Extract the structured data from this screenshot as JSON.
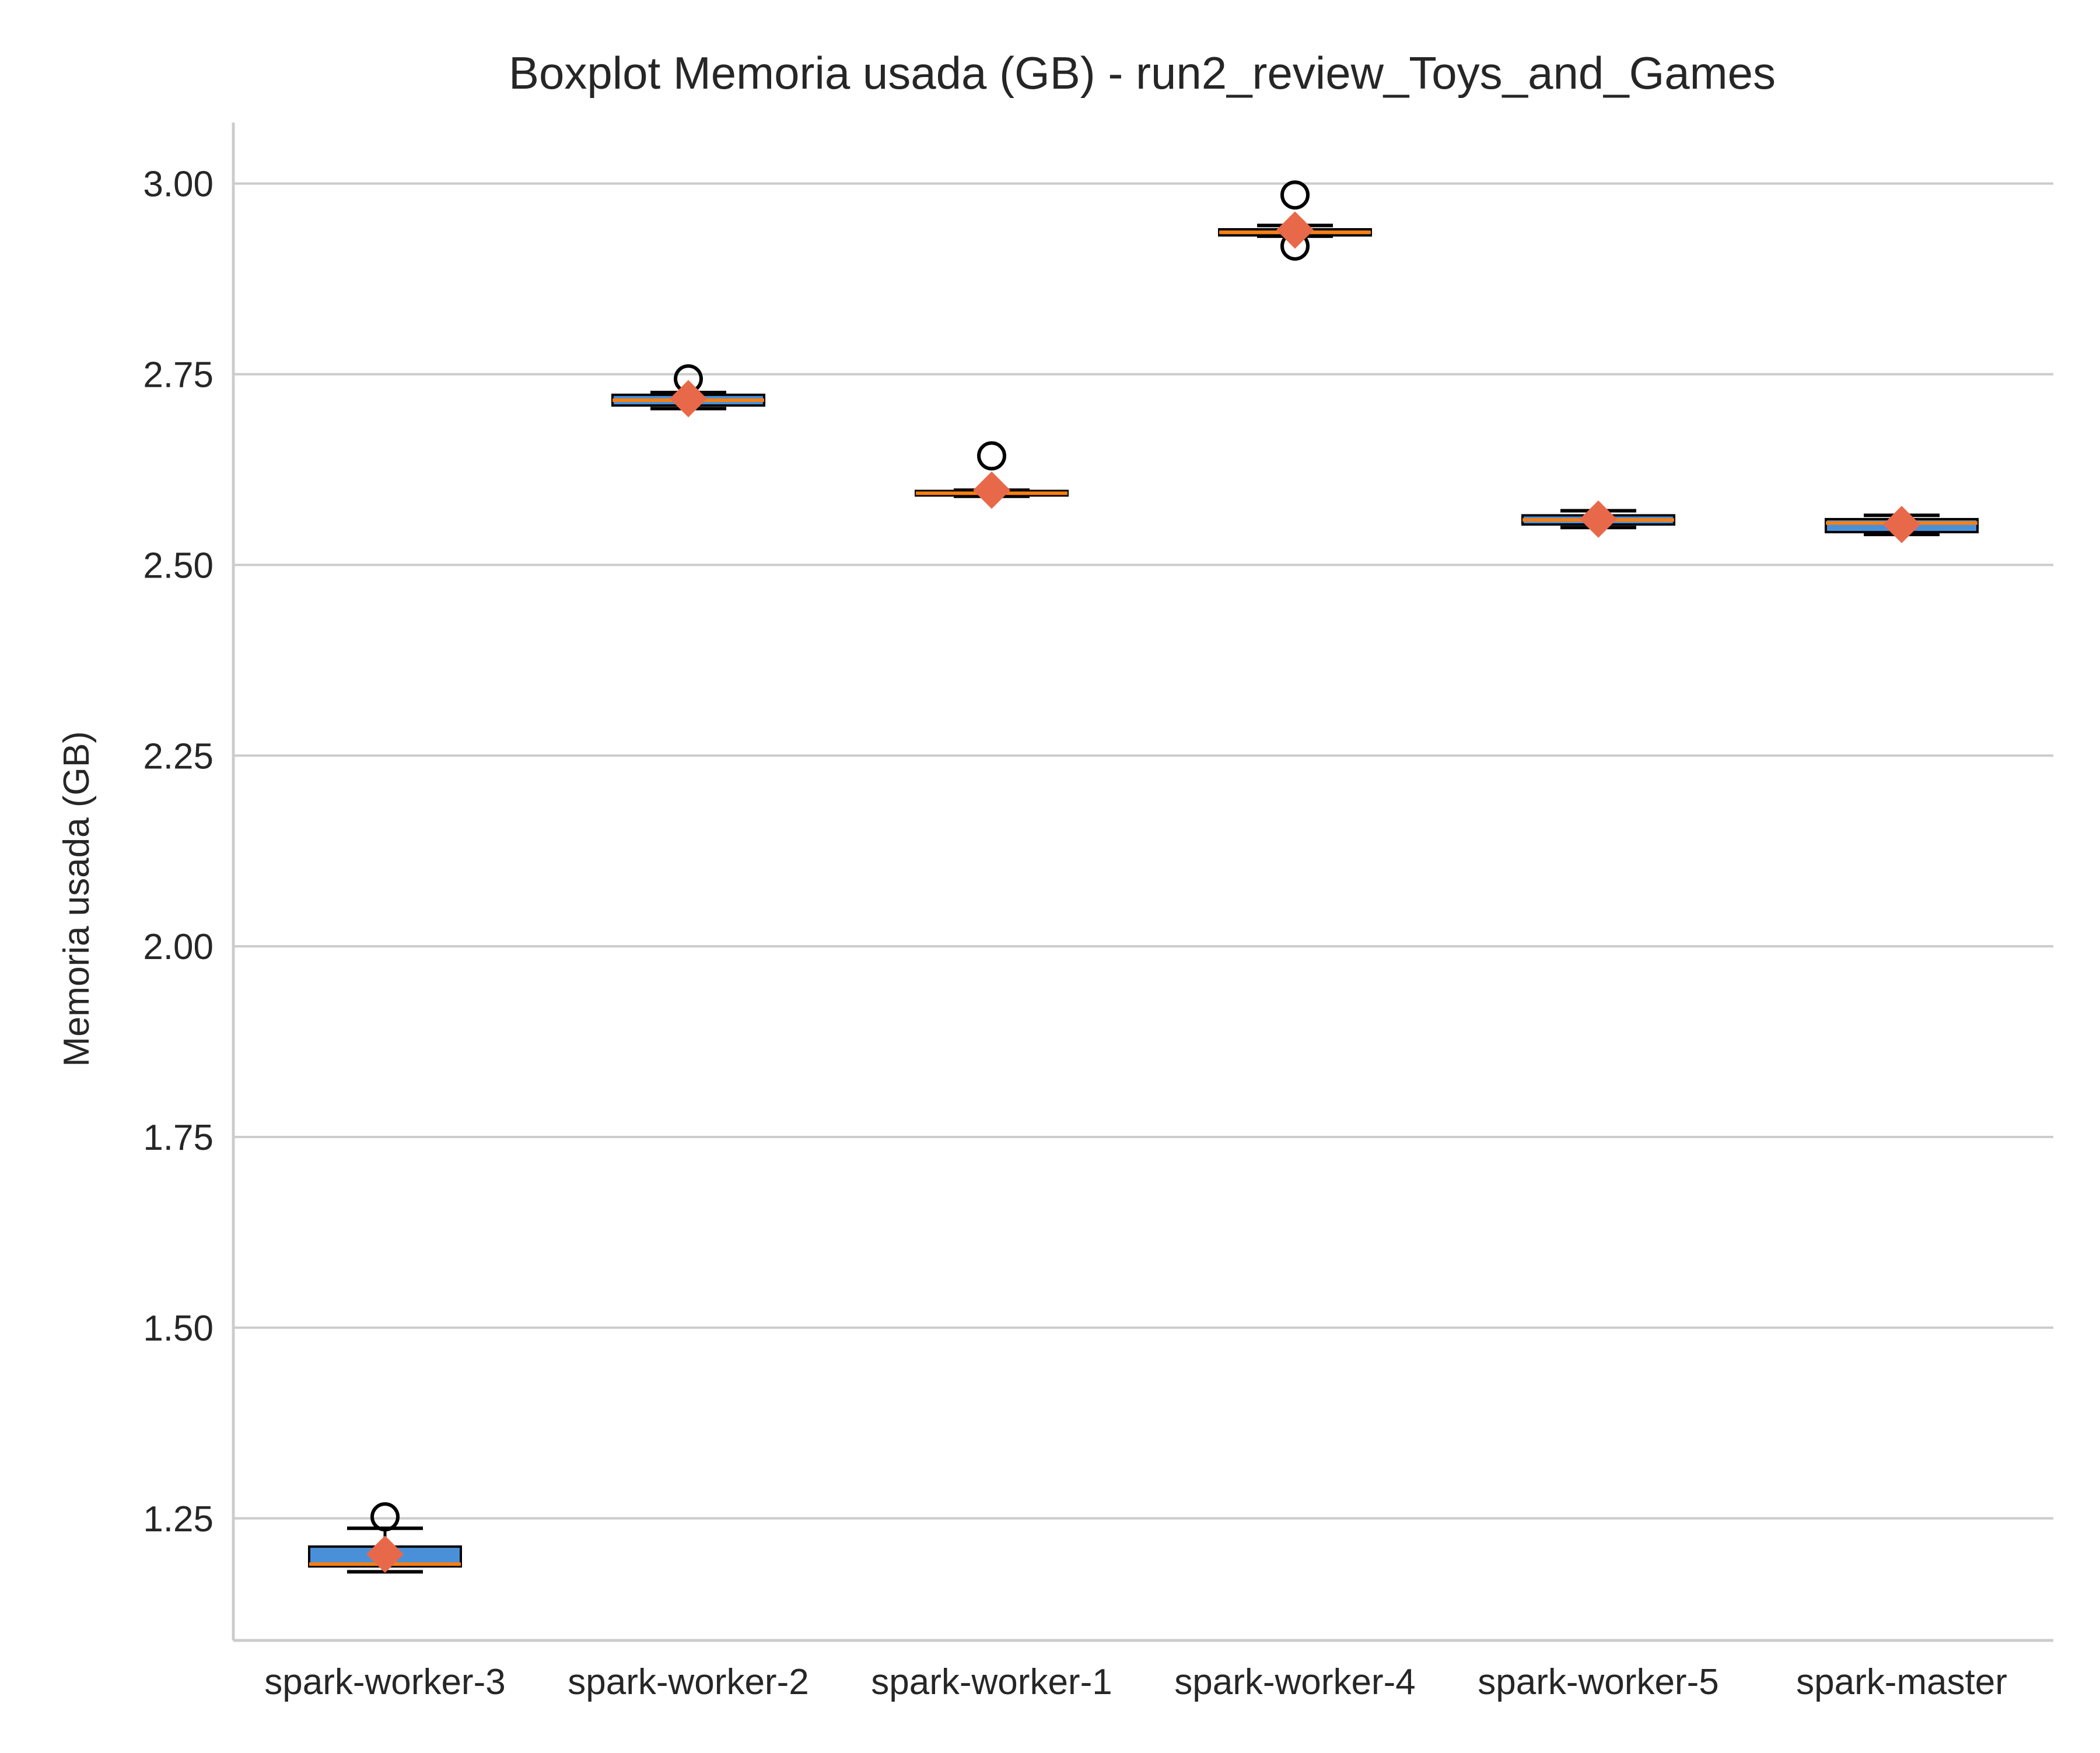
{
  "chart_data": {
    "type": "boxplot",
    "title": "Boxplot Memoria usada (GB) - run2_review_Toys_and_Games",
    "xlabel": "",
    "ylabel": "Memoria usada (GB)",
    "ylim": [
      1.09,
      3.08
    ],
    "yticks": [
      "1.25",
      "1.50",
      "1.75",
      "2.00",
      "2.25",
      "2.50",
      "2.75",
      "3.00"
    ],
    "ytick_values": [
      1.25,
      1.5,
      1.75,
      2.0,
      2.25,
      2.5,
      2.75,
      3.0
    ],
    "grid": "horizontal",
    "categories": [
      "spark-worker-3",
      "spark-worker-2",
      "spark-worker-1",
      "spark-worker-4",
      "spark-worker-5",
      "spark-master"
    ],
    "boxes": [
      {
        "whislo": 1.18,
        "q1": 1.187,
        "med": 1.19,
        "q3": 1.213,
        "whishi": 1.237,
        "mean": 1.203,
        "fliers": [
          1.252
        ]
      },
      {
        "whislo": 2.705,
        "q1": 2.709,
        "med": 2.716,
        "q3": 2.723,
        "whishi": 2.726,
        "mean": 2.718,
        "fliers": [
          2.744
        ]
      },
      {
        "whislo": 2.59,
        "q1": 2.591,
        "med": 2.594,
        "q3": 2.597,
        "whishi": 2.598,
        "mean": 2.598,
        "fliers": [
          2.643
        ]
      },
      {
        "whislo": 2.931,
        "q1": 2.932,
        "med": 2.936,
        "q3": 2.94,
        "whishi": 2.945,
        "mean": 2.939,
        "fliers": [
          2.985,
          2.918
        ]
      },
      {
        "whislo": 2.549,
        "q1": 2.553,
        "med": 2.559,
        "q3": 2.565,
        "whishi": 2.571,
        "mean": 2.56,
        "fliers": []
      },
      {
        "whislo": 2.54,
        "q1": 2.543,
        "med": 2.555,
        "q3": 2.56,
        "whishi": 2.565,
        "mean": 2.553,
        "fliers": []
      }
    ]
  },
  "colors": {
    "box_fill": "#4a90d9",
    "median": "#ff7f0e",
    "mean_marker": "#e8694a",
    "grid": "#cccccc",
    "axis": "#cccccc",
    "text": "#262626"
  }
}
